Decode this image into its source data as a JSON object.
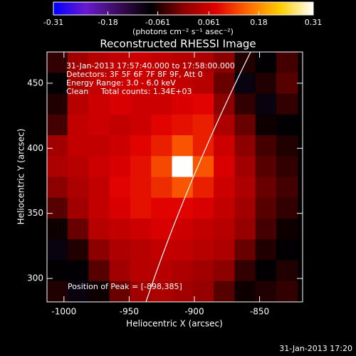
{
  "chart_data": {
    "type": "heatmap",
    "title": "Reconstructed RHESSI Image",
    "colorbar_label": "(photons cm⁻² s⁻¹ asec⁻²)",
    "annotations": [
      "31-Jan-2013 17:57:40.000 to 17:58:00.000",
      "Detectors: 3F 5F 6F 7F 8F 9F, Att 0",
      "Energy Range: 3.0 - 6.0 keV",
      "Clean     Total counts: 1.34E+03"
    ],
    "peak_label": "Position of Peak = [-898,385]",
    "footer": "31-Jan-2013 17:20",
    "xlabel": "Heliocentric X (arcsec)",
    "ylabel": "Heliocentric Y (arcsec)",
    "xlim": [
      -1013,
      -817
    ],
    "ylim": [
      282,
      474
    ],
    "xticks": [
      -1000,
      -950,
      -900,
      -850
    ],
    "yticks": [
      300,
      350,
      400,
      450
    ],
    "zlim": [
      -0.31,
      0.31
    ],
    "zticks": [
      -0.31,
      -0.18,
      -0.061,
      0.061,
      0.18,
      0.31
    ],
    "colorscale": [
      "#0000ff",
      "#6a1ad0",
      "#3a0c5a",
      "#000000",
      "#8c0000",
      "#e00000",
      "#ff6a00",
      "#ffd000",
      "#ffffff"
    ],
    "x": [
      -1005,
      -989,
      -973,
      -957,
      -941,
      -925,
      -909,
      -893,
      -877,
      -861,
      -845,
      -829
    ],
    "y": [
      466,
      450,
      434,
      418,
      402,
      386,
      370,
      354,
      338,
      322,
      306,
      290
    ],
    "z": [
      [
        -0.05,
        0.02,
        0.04,
        0.05,
        0.06,
        0.05,
        0.04,
        0.03,
        0.0,
        -0.06,
        -0.08,
        -0.04
      ],
      [
        -0.08,
        0.03,
        0.05,
        0.06,
        0.06,
        0.05,
        0.05,
        0.04,
        -0.02,
        -0.09,
        -0.06,
        -0.03
      ],
      [
        -0.06,
        0.04,
        0.06,
        0.07,
        0.06,
        0.06,
        0.07,
        0.08,
        0.0,
        -0.05,
        -0.09,
        -0.05
      ],
      [
        -0.04,
        0.05,
        0.06,
        0.05,
        0.06,
        0.08,
        0.09,
        0.1,
        0.03,
        -0.02,
        -0.07,
        -0.08
      ],
      [
        0.02,
        0.05,
        0.05,
        0.06,
        0.08,
        0.1,
        0.14,
        0.1,
        0.06,
        0.0,
        -0.04,
        -0.06
      ],
      [
        0.03,
        0.04,
        0.06,
        0.07,
        0.09,
        0.13,
        0.31,
        0.14,
        0.07,
        0.02,
        -0.03,
        -0.05
      ],
      [
        0.0,
        0.03,
        0.05,
        0.08,
        0.09,
        0.11,
        0.14,
        0.1,
        0.06,
        0.03,
        -0.02,
        -0.04
      ],
      [
        -0.03,
        0.02,
        0.05,
        0.07,
        0.09,
        0.08,
        0.08,
        0.07,
        0.05,
        0.02,
        -0.03,
        -0.05
      ],
      [
        -0.07,
        -0.02,
        0.04,
        0.05,
        0.06,
        0.07,
        0.06,
        0.05,
        0.04,
        0.01,
        -0.04,
        -0.07
      ],
      [
        -0.09,
        -0.06,
        0.0,
        0.03,
        0.04,
        0.05,
        0.05,
        0.04,
        0.03,
        -0.02,
        -0.06,
        -0.08
      ],
      [
        -0.08,
        -0.08,
        -0.03,
        0.02,
        0.04,
        0.04,
        0.03,
        0.02,
        0.0,
        -0.05,
        -0.08,
        -0.06
      ],
      [
        -0.06,
        -0.09,
        -0.07,
        -0.02,
        0.02,
        0.03,
        0.02,
        0.01,
        -0.03,
        -0.07,
        -0.06,
        -0.05
      ]
    ]
  }
}
